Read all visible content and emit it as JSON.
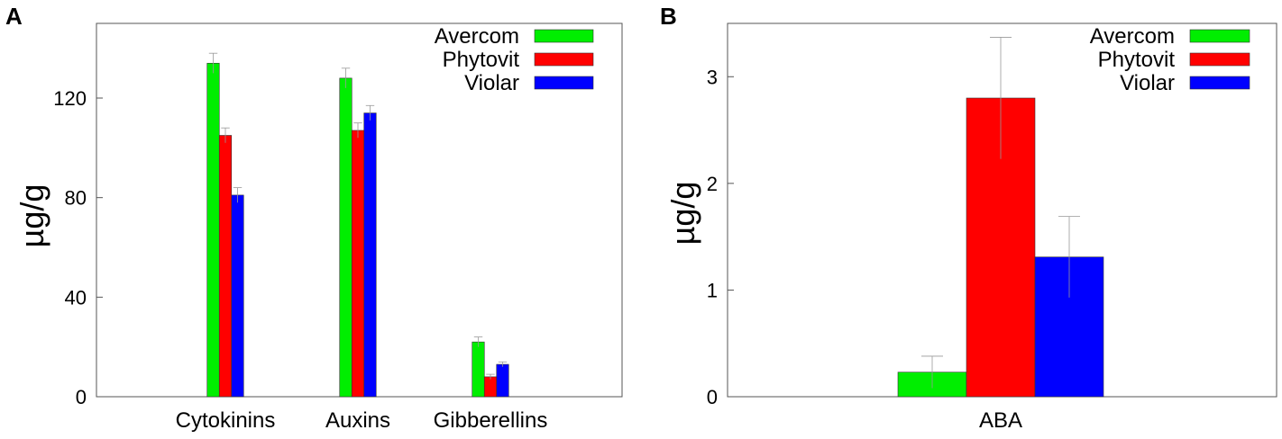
{
  "chart_data": [
    {
      "type": "bar",
      "panel_label": "A",
      "ylabel": "µg/g",
      "ylim": [
        0,
        150
      ],
      "yticks": [
        0,
        40,
        80,
        120
      ],
      "categories": [
        "Cytokinins",
        "Auxins",
        "Gibberellins"
      ],
      "series": [
        {
          "name": "Avercom",
          "color": "#00ee00",
          "values": [
            134,
            128,
            22
          ],
          "errors": [
            4,
            4,
            2
          ]
        },
        {
          "name": "Phytovit",
          "color": "#ff0000",
          "values": [
            105,
            107,
            8
          ],
          "errors": [
            3,
            3,
            1
          ]
        },
        {
          "name": "Violar",
          "color": "#0000ff",
          "values": [
            81,
            114,
            13
          ],
          "errors": [
            3,
            3,
            1
          ]
        }
      ],
      "legend": "top-right",
      "grid": false
    },
    {
      "type": "bar",
      "panel_label": "B",
      "ylabel": "µg/g",
      "ylim": [
        0,
        3.5
      ],
      "yticks": [
        0,
        1,
        2,
        3
      ],
      "categories": [
        "ABA"
      ],
      "series": [
        {
          "name": "Avercom",
          "color": "#00ee00",
          "values": [
            0.23
          ],
          "errors": [
            0.15
          ]
        },
        {
          "name": "Phytovit",
          "color": "#ff0000",
          "values": [
            2.8
          ],
          "errors": [
            0.57
          ]
        },
        {
          "name": "Violar",
          "color": "#0000ff",
          "values": [
            1.31
          ],
          "errors": [
            0.38
          ]
        }
      ],
      "legend": "top-right",
      "grid": false
    }
  ]
}
